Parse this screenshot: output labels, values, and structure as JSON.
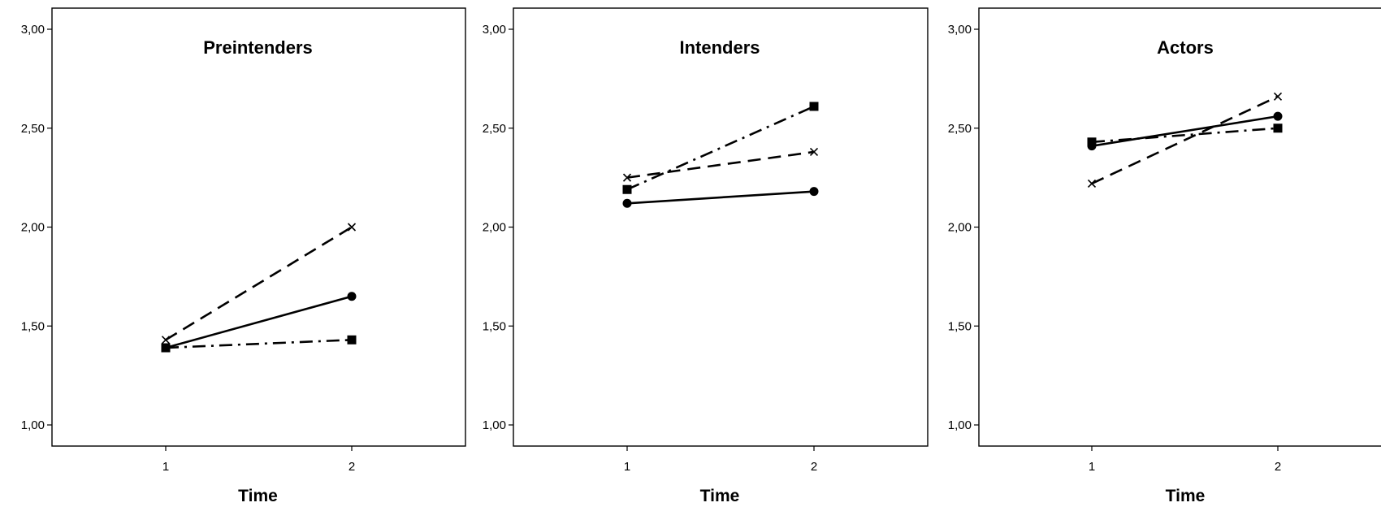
{
  "chart_data": [
    {
      "type": "line",
      "title": "Preintenders",
      "xlabel": "Time",
      "ylabel": "",
      "categories": [
        "1",
        "2"
      ],
      "ylim": [
        0.9,
        3.1
      ],
      "yticks": [
        "1,00",
        "1,50",
        "2,00",
        "2,50",
        "3,00"
      ],
      "ytick_values": [
        1.0,
        1.5,
        2.0,
        2.5,
        3.0
      ],
      "grid": false,
      "series": [
        {
          "values": [
            1.39,
            1.65
          ],
          "line": "solid",
          "marker": "circle"
        },
        {
          "values": [
            1.43,
            2.0
          ],
          "line": "dashed",
          "marker": "x"
        },
        {
          "values": [
            1.39,
            1.43
          ],
          "line": "dash-dot",
          "marker": "square"
        }
      ]
    },
    {
      "type": "line",
      "title": "Intenders",
      "xlabel": "Time",
      "ylabel": "",
      "categories": [
        "1",
        "2"
      ],
      "ylim": [
        0.9,
        3.1
      ],
      "yticks": [
        "1,00",
        "1,50",
        "2,00",
        "2,50",
        "3,00"
      ],
      "ytick_values": [
        1.0,
        1.5,
        2.0,
        2.5,
        3.0
      ],
      "grid": false,
      "series": [
        {
          "values": [
            2.12,
            2.18
          ],
          "line": "solid",
          "marker": "circle"
        },
        {
          "values": [
            2.25,
            2.38
          ],
          "line": "dashed",
          "marker": "x"
        },
        {
          "values": [
            2.19,
            2.61
          ],
          "line": "dash-dot",
          "marker": "square"
        }
      ]
    },
    {
      "type": "line",
      "title": "Actors",
      "xlabel": "Time",
      "ylabel": "",
      "categories": [
        "1",
        "2"
      ],
      "ylim": [
        0.9,
        3.1
      ],
      "yticks": [
        "1,00",
        "1,50",
        "2,00",
        "2,50",
        "3,00"
      ],
      "ytick_values": [
        1.0,
        1.5,
        2.0,
        2.5,
        3.0
      ],
      "grid": false,
      "series": [
        {
          "values": [
            2.41,
            2.56
          ],
          "line": "solid",
          "marker": "circle"
        },
        {
          "values": [
            2.22,
            2.66
          ],
          "line": "dashed",
          "marker": "x"
        },
        {
          "values": [
            2.43,
            2.5
          ],
          "line": "dash-dot",
          "marker": "square"
        }
      ]
    }
  ]
}
